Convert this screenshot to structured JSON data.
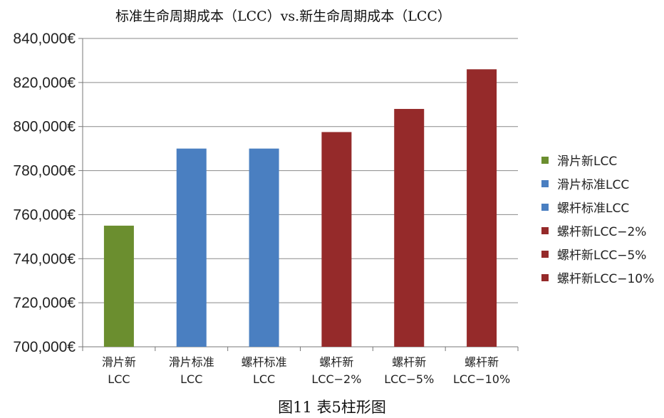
{
  "chart_data": {
    "type": "bar",
    "title": "标准生命周期成本（LCC）vs.新生命周期成本（LCC）",
    "categories": [
      [
        "滑片新",
        "LCC"
      ],
      [
        "滑片标准",
        "LCC"
      ],
      [
        "螺杆标准",
        "LCC"
      ],
      [
        "螺杆新",
        "LCC−2%"
      ],
      [
        "螺杆新",
        "LCC−5%"
      ],
      [
        "螺杆新",
        "LCC−10%"
      ]
    ],
    "values": [
      755000,
      790000,
      790000,
      797500,
      808000,
      826000
    ],
    "bar_colors": [
      "#6b8e2f",
      "#4a7fc1",
      "#4a7fc1",
      "#952a2a",
      "#952a2a",
      "#952a2a"
    ],
    "ylim": [
      700000,
      840000
    ],
    "yticks": [
      700000,
      720000,
      740000,
      760000,
      780000,
      800000,
      820000,
      840000
    ],
    "ytick_labels": [
      "700,000€",
      "720,000€",
      "740,000€",
      "760,000€",
      "780,000€",
      "800,000€",
      "820,000€",
      "840,000€"
    ],
    "grid": true,
    "legend_position": "right",
    "legend": [
      {
        "label": "滑片新LCC",
        "color": "#6b8e2f"
      },
      {
        "label": "滑片标准LCC",
        "color": "#4a7fc1"
      },
      {
        "label": "螺杆标准LCC",
        "color": "#4a7fc1"
      },
      {
        "label": "螺杆新LCC−2%",
        "color": "#952a2a"
      },
      {
        "label": "螺杆新LCC−5%",
        "color": "#952a2a"
      },
      {
        "label": "螺杆新LCC−10%",
        "color": "#952a2a"
      }
    ],
    "xlabel": "",
    "ylabel": ""
  },
  "caption": "图11 表5柱形图"
}
